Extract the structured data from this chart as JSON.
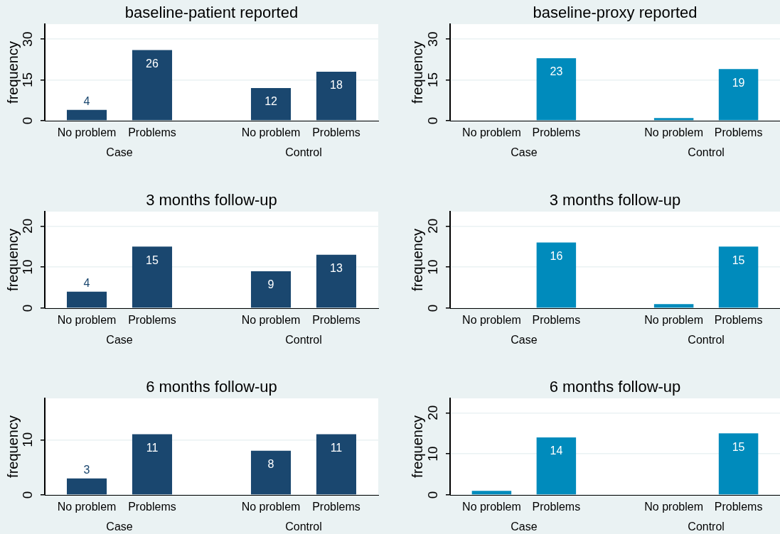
{
  "chart_data": [
    {
      "type": "bar",
      "title": "baseline-patient reported",
      "ylabel": "frequency",
      "categories": [
        "Case",
        "Control"
      ],
      "series": [
        {
          "name": "No problem",
          "color": "#1a476f",
          "values": [
            4,
            12
          ],
          "value_labels": [
            "4",
            "12"
          ]
        },
        {
          "name": "Problems",
          "color": "#1a476f",
          "values": [
            26,
            18
          ],
          "value_labels": [
            "26",
            "18"
          ]
        }
      ],
      "ylim": [
        0,
        35.5
      ],
      "yticks": [
        0,
        15,
        30
      ],
      "grid": "y"
    },
    {
      "type": "bar",
      "title": "baseline-proxy reported",
      "ylabel": "frequency",
      "categories": [
        "Case",
        "Control"
      ],
      "series": [
        {
          "name": "No problem",
          "color": "#008bbc",
          "values": [
            0,
            1
          ],
          "value_labels": [
            null,
            null
          ]
        },
        {
          "name": "Problems",
          "color": "#008bbc",
          "values": [
            23,
            19
          ],
          "value_labels": [
            "23",
            "19"
          ]
        }
      ],
      "ylim": [
        0,
        35.5
      ],
      "yticks": [
        0,
        15,
        30
      ],
      "grid": "y"
    },
    {
      "type": "bar",
      "title": "3 months follow-up",
      "ylabel": "frequency",
      "categories": [
        "Case",
        "Control"
      ],
      "series": [
        {
          "name": "No problem",
          "color": "#1a476f",
          "values": [
            4,
            9
          ],
          "value_labels": [
            "4",
            "9"
          ]
        },
        {
          "name": "Problems",
          "color": "#1a476f",
          "values": [
            15,
            13
          ],
          "value_labels": [
            "15",
            "13"
          ]
        }
      ],
      "ylim": [
        0,
        23.5
      ],
      "yticks": [
        0,
        10,
        20
      ],
      "grid": "y"
    },
    {
      "type": "bar",
      "title": "3 months follow-up",
      "ylabel": "frequency",
      "categories": [
        "Case",
        "Control"
      ],
      "series": [
        {
          "name": "No problem",
          "color": "#008bbc",
          "values": [
            0,
            1
          ],
          "value_labels": [
            null,
            null
          ]
        },
        {
          "name": "Problems",
          "color": "#008bbc",
          "values": [
            16,
            15
          ],
          "value_labels": [
            "16",
            "15"
          ]
        }
      ],
      "ylim": [
        0,
        23.5
      ],
      "yticks": [
        0,
        10,
        20
      ],
      "grid": "y"
    },
    {
      "type": "bar",
      "title": "6 months follow-up",
      "ylabel": "frequency",
      "categories": [
        "Case",
        "Control"
      ],
      "series": [
        {
          "name": "No problem",
          "color": "#1a476f",
          "values": [
            3,
            8
          ],
          "value_labels": [
            "3",
            "8"
          ]
        },
        {
          "name": "Problems",
          "color": "#1a476f",
          "values": [
            11,
            11
          ],
          "value_labels": [
            "11",
            "11"
          ]
        }
      ],
      "ylim": [
        0,
        17.5
      ],
      "yticks": [
        0,
        10
      ],
      "grid": "y"
    },
    {
      "type": "bar",
      "title": "6 months follow-up",
      "ylabel": "frequency",
      "categories": [
        "Case",
        "Control"
      ],
      "series": [
        {
          "name": "No problem",
          "color": "#008bbc",
          "values": [
            1,
            0
          ],
          "value_labels": [
            null,
            null
          ]
        },
        {
          "name": "Problems",
          "color": "#008bbc",
          "values": [
            14,
            15
          ],
          "value_labels": [
            "14",
            "15"
          ]
        }
      ],
      "ylim": [
        0,
        23.5
      ],
      "yticks": [
        0,
        10,
        20
      ],
      "grid": "y"
    }
  ]
}
